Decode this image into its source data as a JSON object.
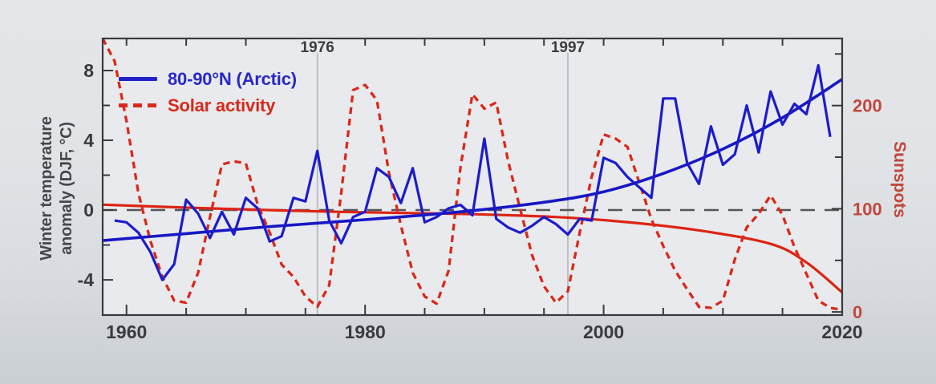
{
  "chart_data": {
    "type": "line",
    "title": "",
    "colors": {
      "arctic_blue": "#1c1ccb",
      "arctic_trend_blue": "#1717c4",
      "solar_red": "#d9291a",
      "solar_trend_red": "#dd2412",
      "right_axis_red": "#c2473c",
      "axis_dark": "#3b3b3f",
      "tick_label": "#3a3a3e",
      "gridline_gray": "#b2b5b9",
      "zero_line_gray": "#55555a",
      "plot_background": "#e8eaed"
    },
    "legend": [
      {
        "label": "80-90°N (Arctic)",
        "color": "#2222c8",
        "style": "solid"
      },
      {
        "label": "Solar activity",
        "color": "#d9291a",
        "style": "dashed"
      }
    ],
    "x_axis": {
      "range": [
        1958,
        2020
      ],
      "minor_step": 5,
      "minor_from": 1960,
      "major_ticks": [
        {
          "value": 1960,
          "label": "1960"
        },
        {
          "value": 1980,
          "label": "1980"
        },
        {
          "value": 2000,
          "label": "2000"
        },
        {
          "value": 2020,
          "label": "2020"
        }
      ]
    },
    "top_axis_annotations": [
      {
        "year": 1976,
        "label": "1976"
      },
      {
        "year": 1997,
        "label": "1997"
      }
    ],
    "y_left": {
      "label_line1": "Winter temperature",
      "label_line2": "anomaly (DJF, °C)",
      "range": [
        -6.02,
        9.84
      ],
      "minor_ticks": [
        -2,
        2,
        6
      ],
      "major_ticks": [
        {
          "value": -4,
          "label": "-4"
        },
        {
          "value": 0,
          "label": "0"
        },
        {
          "value": 4,
          "label": "4"
        },
        {
          "value": 8,
          "label": "8"
        }
      ],
      "zero_line": true
    },
    "y_right": {
      "label": "Sunspots",
      "range": [
        -3,
        265
      ],
      "minor_ticks": [
        50,
        150,
        250
      ],
      "major_ticks": [
        {
          "value": 0,
          "label": "0"
        },
        {
          "value": 100,
          "label": "100"
        },
        {
          "value": 200,
          "label": "200"
        }
      ]
    },
    "series": [
      {
        "name": "solar-activity-trend",
        "axis": "right",
        "style": "solid",
        "smooth": true,
        "color": "#dd2412",
        "width": 3.2,
        "points": [
          [
            1958,
            104
          ],
          [
            1968,
            100
          ],
          [
            1978,
            97
          ],
          [
            1988,
            95
          ],
          [
            1996,
            92
          ],
          [
            2002,
            87
          ],
          [
            2008,
            79
          ],
          [
            2014,
            66
          ],
          [
            2017,
            48
          ],
          [
            2020,
            19
          ]
        ]
      },
      {
        "name": "solar-activity-annual",
        "axis": "right",
        "style": "dashed",
        "smooth": false,
        "color": "#d9291a",
        "width": 3.3,
        "start_year": 1958,
        "values": [
          265,
          243,
          185,
          115,
          69,
          34,
          11,
          9,
          38,
          92,
          143,
          146,
          144,
          104,
          77,
          46,
          34,
          15,
          5,
          26,
          115,
          215,
          220,
          205,
          135,
          84,
          38,
          15,
          8,
          40,
          140,
          211,
          197,
          203,
          146,
          100,
          55,
          25,
          9,
          20,
          77,
          131,
          172,
          168,
          160,
          125,
          90,
          64,
          40,
          22,
          5,
          4,
          11,
          51,
          82,
          95,
          113,
          94,
          63,
          37,
          11,
          4,
          2
        ]
      },
      {
        "name": "arctic-temperature-trend",
        "axis": "left",
        "style": "solid",
        "smooth": true,
        "color": "#1717c4",
        "width": 3.6,
        "points": [
          [
            1958,
            -1.75
          ],
          [
            1965,
            -1.35
          ],
          [
            1972,
            -0.95
          ],
          [
            1980,
            -0.55
          ],
          [
            1988,
            -0.1
          ],
          [
            1995,
            0.45
          ],
          [
            2000,
            1.05
          ],
          [
            2005,
            2.1
          ],
          [
            2010,
            3.5
          ],
          [
            2015,
            5.3
          ],
          [
            2020,
            7.5
          ]
        ]
      },
      {
        "name": "arctic-temperature-annual",
        "axis": "left",
        "style": "solid",
        "smooth": false,
        "color": "#1c1ccb",
        "width": 3.2,
        "start_year": 1959,
        "values": [
          -0.6,
          -0.7,
          -1.3,
          -2.4,
          -4.0,
          -3.1,
          0.6,
          -0.2,
          -1.6,
          -0.1,
          -1.4,
          0.7,
          0.1,
          -1.8,
          -1.5,
          0.7,
          0.5,
          3.4,
          -0.6,
          -1.9,
          -0.4,
          -0.1,
          2.4,
          1.9,
          0.4,
          2.4,
          -0.7,
          -0.4,
          0.1,
          0.3,
          -0.3,
          4.1,
          -0.5,
          -1.0,
          -1.3,
          -0.9,
          -0.4,
          -0.8,
          -1.4,
          -0.5,
          -0.6,
          3.0,
          2.7,
          1.9,
          1.3,
          0.7,
          6.4,
          6.4,
          2.7,
          1.5,
          4.8,
          2.6,
          3.2,
          6.0,
          3.3,
          6.8,
          4.9,
          6.1,
          5.5,
          8.3,
          4.2
        ]
      }
    ]
  }
}
